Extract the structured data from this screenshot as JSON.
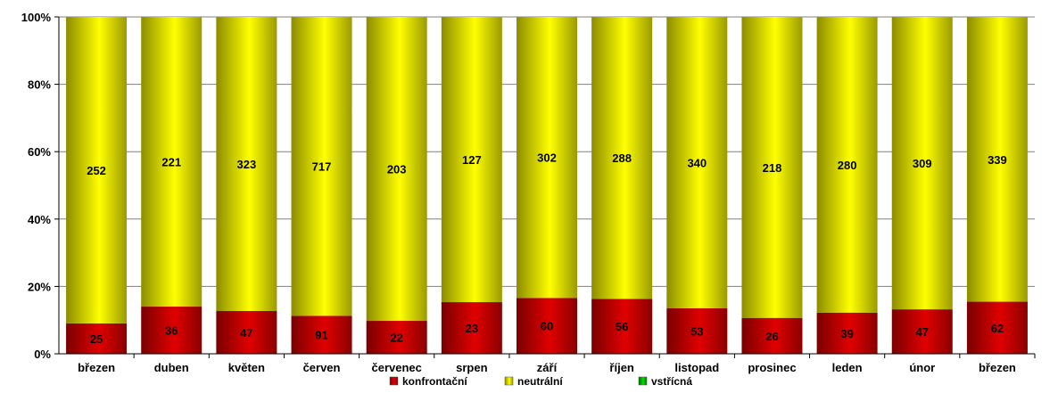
{
  "chart_data": {
    "type": "bar",
    "stacked": "percent",
    "categories": [
      "březen",
      "duben",
      "květen",
      "červen",
      "červenec",
      "srpen",
      "září",
      "říjen",
      "listopad",
      "prosinec",
      "leden",
      "únor",
      "březen"
    ],
    "series": [
      {
        "name": "konfrontační",
        "values": [
          25,
          36,
          47,
          91,
          22,
          23,
          60,
          56,
          53,
          26,
          39,
          47,
          62
        ],
        "color": "#cc0000"
      },
      {
        "name": "neutrální",
        "values": [
          252,
          221,
          323,
          717,
          203,
          127,
          302,
          288,
          340,
          218,
          280,
          309,
          339
        ],
        "color": "#ffff00"
      },
      {
        "name": "vstřícná",
        "values": [
          0,
          0,
          0,
          0,
          0,
          0,
          0,
          0,
          0,
          0,
          0,
          0,
          0
        ],
        "color": "#00cc00"
      }
    ],
    "yticks": [
      "0%",
      "20%",
      "40%",
      "60%",
      "80%",
      "100%"
    ],
    "ylim": [
      0,
      100
    ],
    "grid": true,
    "legend": "bottom"
  }
}
